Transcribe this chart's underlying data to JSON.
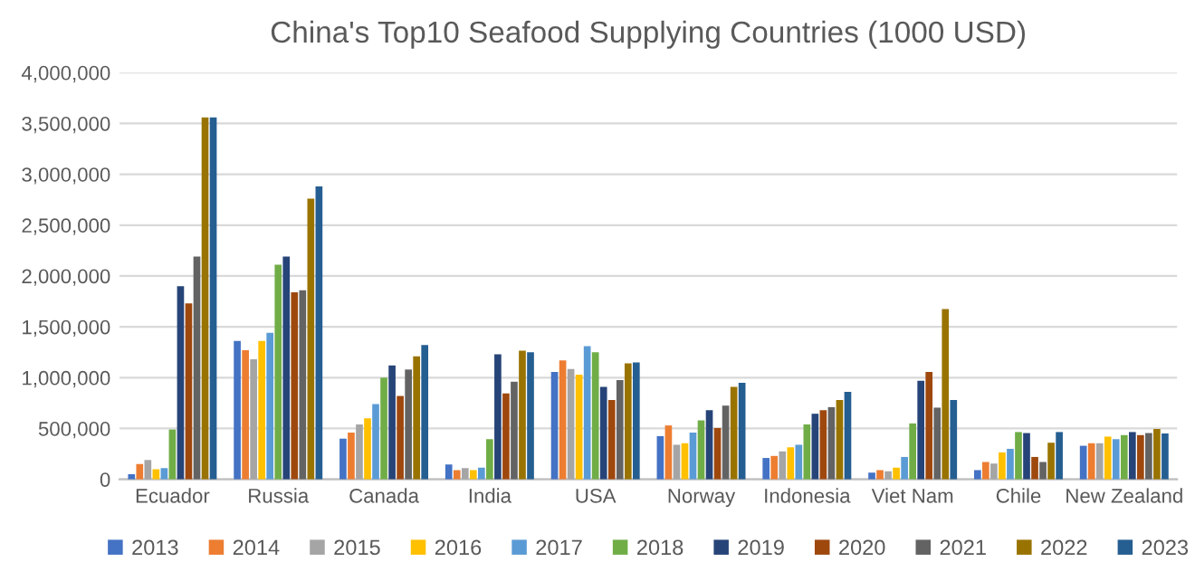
{
  "chart_data": {
    "type": "bar",
    "title": "China's Top10 Seafood Supplying Countries (1000 USD)",
    "categories": [
      "Ecuador",
      "Russia",
      "Canada",
      "India",
      "USA",
      "Norway",
      "Indonesia",
      "Viet Nam",
      "Chile",
      "New Zealand"
    ],
    "series": [
      {
        "name": "2013",
        "color": "#4472c4",
        "values": [
          50000,
          1360000,
          400000,
          145000,
          1055000,
          425000,
          210000,
          65000,
          90000,
          330000
        ]
      },
      {
        "name": "2014",
        "color": "#ed7d31",
        "values": [
          150000,
          1270000,
          460000,
          90000,
          1170000,
          530000,
          230000,
          90000,
          170000,
          355000
        ]
      },
      {
        "name": "2015",
        "color": "#a5a5a5",
        "values": [
          190000,
          1180000,
          540000,
          110000,
          1085000,
          340000,
          275000,
          80000,
          155000,
          355000
        ]
      },
      {
        "name": "2016",
        "color": "#ffc000",
        "values": [
          100000,
          1360000,
          600000,
          90000,
          1030000,
          355000,
          315000,
          115000,
          265000,
          420000
        ]
      },
      {
        "name": "2017",
        "color": "#5b9bd5",
        "values": [
          110000,
          1440000,
          740000,
          115000,
          1310000,
          460000,
          340000,
          220000,
          300000,
          395000
        ]
      },
      {
        "name": "2018",
        "color": "#70ad47",
        "values": [
          490000,
          2110000,
          1000000,
          395000,
          1250000,
          580000,
          540000,
          550000,
          465000,
          435000
        ]
      },
      {
        "name": "2019",
        "color": "#264478",
        "values": [
          1900000,
          2190000,
          1120000,
          1230000,
          910000,
          680000,
          645000,
          970000,
          455000,
          465000
        ]
      },
      {
        "name": "2020",
        "color": "#9e480e",
        "values": [
          1730000,
          1840000,
          820000,
          845000,
          780000,
          505000,
          680000,
          1055000,
          220000,
          435000
        ]
      },
      {
        "name": "2021",
        "color": "#636363",
        "values": [
          2190000,
          1860000,
          1080000,
          960000,
          975000,
          725000,
          710000,
          705000,
          170000,
          455000
        ]
      },
      {
        "name": "2022",
        "color": "#997300",
        "values": [
          3560000,
          2760000,
          1210000,
          1265000,
          1140000,
          910000,
          780000,
          1675000,
          360000,
          495000
        ]
      },
      {
        "name": "2023",
        "color": "#255e91",
        "values": [
          3560000,
          2880000,
          1320000,
          1250000,
          1150000,
          950000,
          860000,
          780000,
          465000,
          450000
        ]
      }
    ],
    "ylim": [
      0,
      4000000
    ],
    "yticks": [
      {
        "value": 0,
        "label": "0"
      },
      {
        "value": 500000,
        "label": "500,000"
      },
      {
        "value": 1000000,
        "label": "1,000,000"
      },
      {
        "value": 1500000,
        "label": "1,500,000"
      },
      {
        "value": 2000000,
        "label": "2,000,000"
      },
      {
        "value": 2500000,
        "label": "2,500,000"
      },
      {
        "value": 3000000,
        "label": "3,000,000"
      },
      {
        "value": 3500000,
        "label": "3,500,000"
      },
      {
        "value": 4000000,
        "label": "4,000,000"
      }
    ],
    "grid": "y",
    "legend": "bottom"
  }
}
